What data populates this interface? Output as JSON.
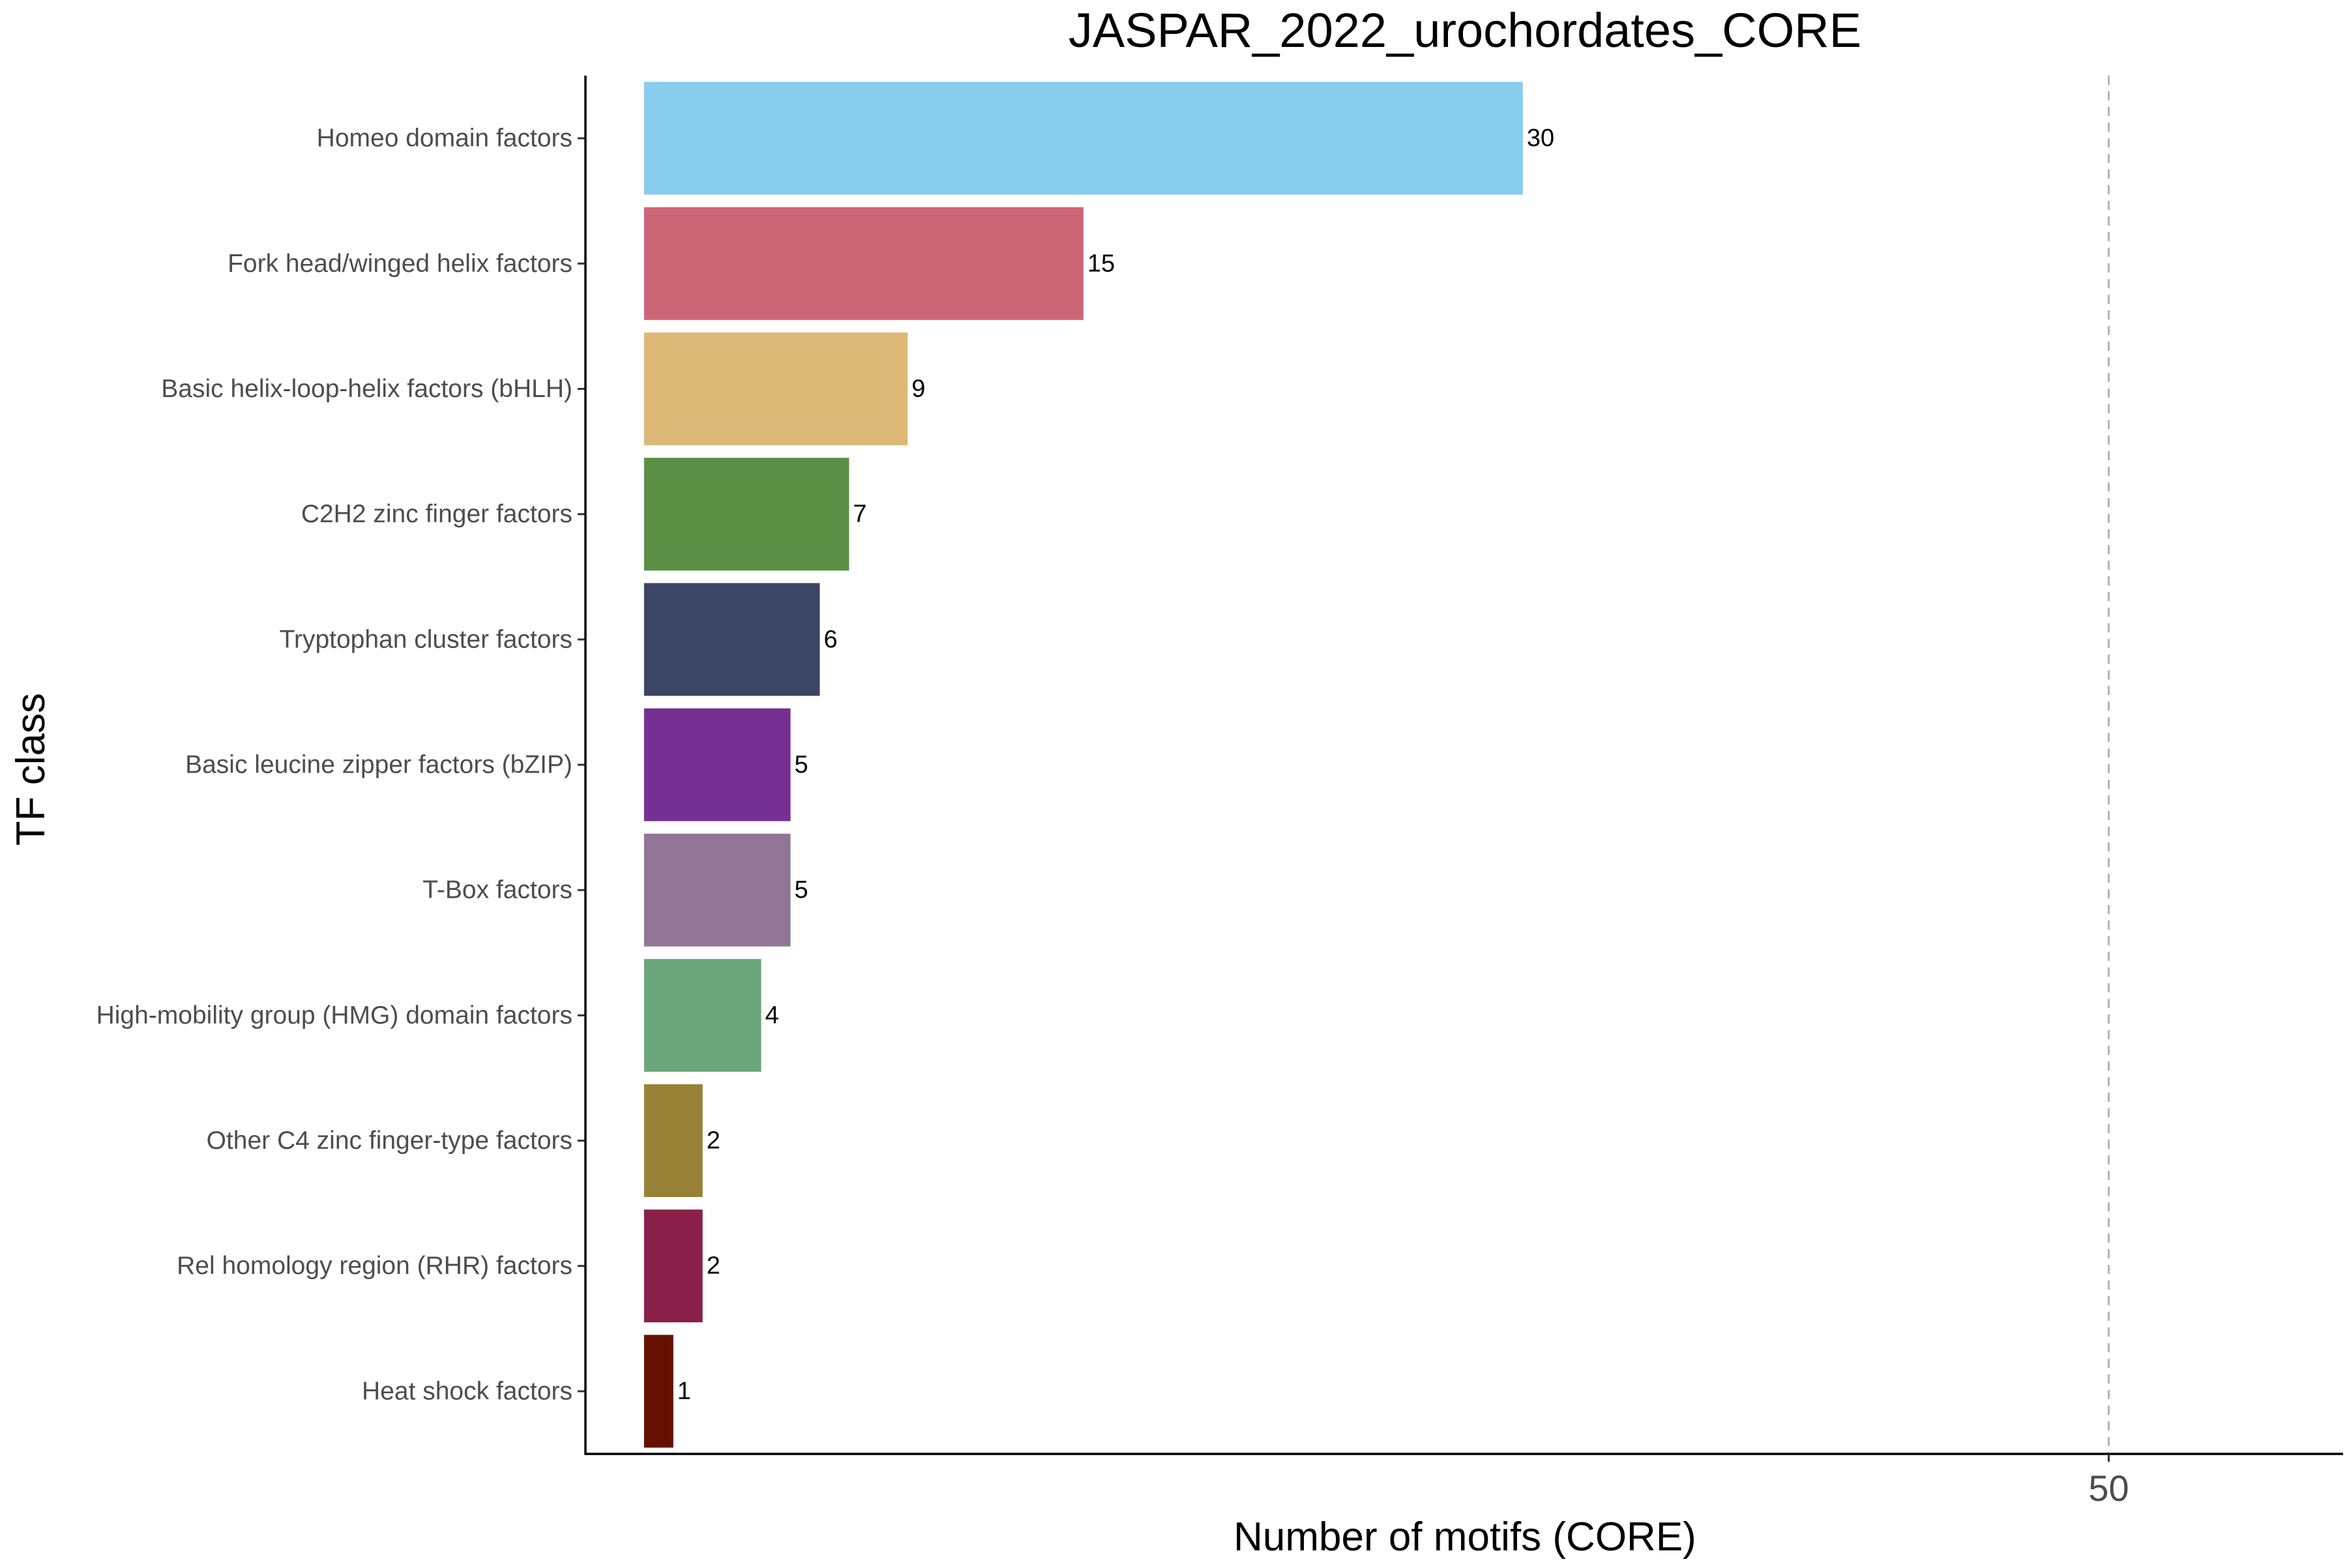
{
  "chart_data": {
    "type": "bar",
    "orientation": "horizontal",
    "title": "JASPAR_2022_urochordates_CORE",
    "xlabel": "Number of motifs (CORE)",
    "ylabel": "TF class",
    "xlim": [
      -2,
      58
    ],
    "x_ticks": [
      50
    ],
    "x_tick_labels": [
      "50"
    ],
    "reference_line": {
      "x": 50,
      "style": "dashed",
      "color": "#b3b3b3"
    },
    "grid": false,
    "legend": "none",
    "categories": [
      "Homeo domain factors",
      "Fork head/winged helix factors",
      "Basic helix-loop-helix factors (bHLH)",
      "C2H2 zinc finger factors",
      "Tryptophan cluster factors",
      "Basic leucine zipper factors (bZIP)",
      "T-Box factors",
      "High-mobility group (HMG) domain factors",
      "Other C4 zinc finger-type factors",
      "Rel homology region (RHR) factors",
      "Heat shock factors"
    ],
    "values": [
      30,
      15,
      9,
      7,
      6,
      5,
      5,
      4,
      2,
      2,
      1
    ],
    "data_labels": [
      "30",
      "15",
      "9",
      "7",
      "6",
      "5",
      "5",
      "4",
      "2",
      "2",
      "1"
    ],
    "colors": [
      "#88CCEE",
      "#CC6677",
      "#DDB877",
      "#5B9044",
      "#3B4664",
      "#753091",
      "#917597",
      "#6BA67B",
      "#978237",
      "#882049",
      "#661100"
    ]
  }
}
